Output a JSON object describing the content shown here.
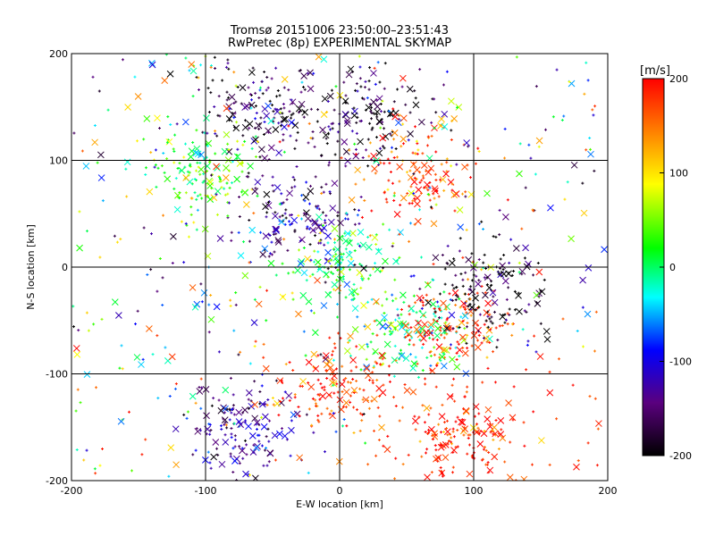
{
  "chart_data": {
    "type": "scatter",
    "title": "Tromsø 20151006 23:50:00–23:51:43",
    "subtitle": "RwPretec (8p) EXPERIMENTAL SKYMAP",
    "xlabel": "E-W location [km]",
    "ylabel": "N-S location [km]",
    "xlim": [
      -200,
      200
    ],
    "ylim": [
      -200,
      200
    ],
    "xticks": [
      "-200",
      "-100",
      "0",
      "100",
      "200"
    ],
    "yticks": [
      "-200",
      "-100",
      "0",
      "100",
      "200"
    ],
    "grid": true,
    "colorbar": {
      "unit_label": "[m/s]",
      "min": -200,
      "max": 200,
      "ticks": [
        "-200",
        "-100",
        "0",
        "100",
        "200"
      ],
      "colormap": [
        "#000000",
        "#5a007e",
        "#0000ff",
        "#00ffff",
        "#00ff00",
        "#ffff00",
        "#ff8000",
        "#ff0000"
      ]
    },
    "markers": [
      "+",
      "x"
    ],
    "clusters": [
      {
        "x": -30,
        "y": 48,
        "v": -140
      },
      {
        "x": -60,
        "y": 150,
        "v": -170
      },
      {
        "x": 20,
        "y": 140,
        "v": -180
      },
      {
        "x": -100,
        "y": 90,
        "v": 40
      },
      {
        "x": 5,
        "y": 5,
        "v": 20
      },
      {
        "x": 50,
        "y": -60,
        "v": 0
      },
      {
        "x": 85,
        "y": -55,
        "v": 180
      },
      {
        "x": 90,
        "y": -160,
        "v": 190
      },
      {
        "x": 60,
        "y": 90,
        "v": 170
      },
      {
        "x": -70,
        "y": -150,
        "v": -130
      },
      {
        "x": -5,
        "y": -110,
        "v": 180
      },
      {
        "x": 110,
        "y": -20,
        "v": -190
      }
    ]
  }
}
